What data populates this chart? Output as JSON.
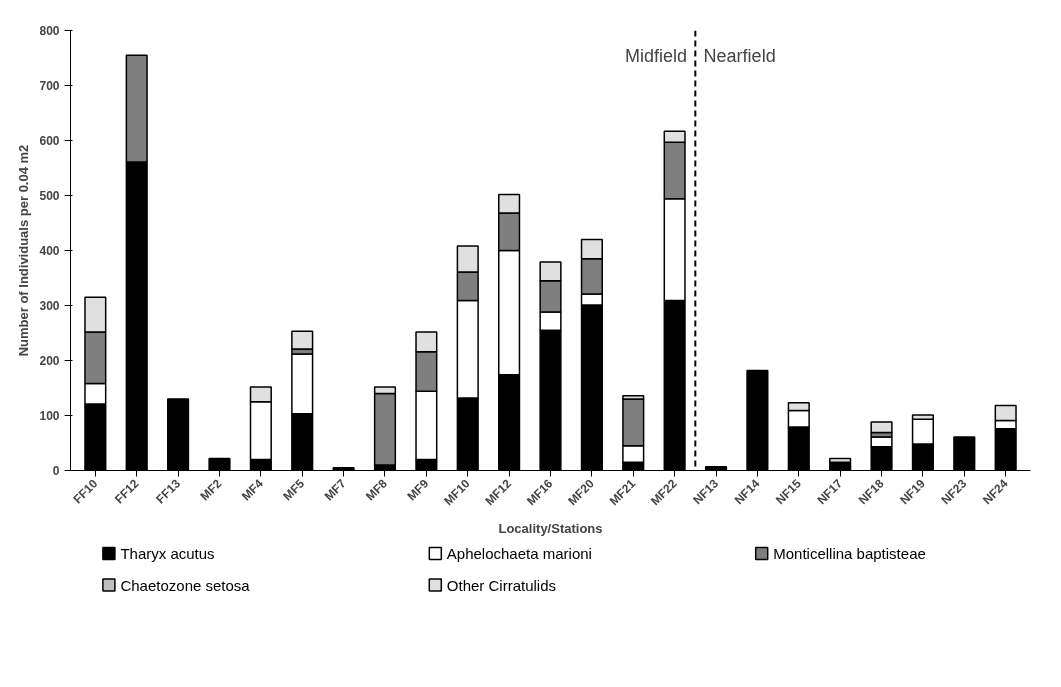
{
  "chart_data": {
    "type": "bar",
    "stacked": true,
    "xlabel": "Locality/Stations",
    "ylabel": "Number of Individuals per 0.04 m2",
    "categories": [
      "FF10",
      "FF12",
      "FF13",
      "MF2",
      "MF4",
      "MF5",
      "MF7",
      "MF8",
      "MF9",
      "MF10",
      "MF12",
      "MF16",
      "MF20",
      "MF21",
      "MF22",
      "NF13",
      "NF14",
      "NF15",
      "NF17",
      "NF18",
      "NF19",
      "NF23",
      "NF24"
    ],
    "series": [
      {
        "name": "Tharyx acutus",
        "color": "#000000",
        "values": [
          121,
          561,
          130,
          22,
          20,
          103,
          5,
          10,
          20,
          132,
          174,
          255,
          301,
          15,
          309,
          7,
          182,
          79,
          15,
          43,
          48,
          61,
          76
        ]
      },
      {
        "name": "Aphelochaeta marioni",
        "color": "#ffffff",
        "values": [
          37,
          0,
          0,
          0,
          105,
          109,
          0,
          0,
          124,
          177,
          226,
          33,
          20,
          30,
          185,
          0,
          0,
          30,
          0,
          18,
          45,
          0,
          15
        ]
      },
      {
        "name": "Monticellina baptisteae",
        "color": "#7f7f7f",
        "values": [
          94,
          194,
          0,
          0,
          0,
          9,
          0,
          130,
          72,
          52,
          68,
          57,
          64,
          85,
          103,
          0,
          0,
          0,
          0,
          8,
          0,
          0,
          0
        ]
      },
      {
        "name": "Chaetozone setosa",
        "color": "#bfbfbf",
        "values": [
          0,
          0,
          0,
          0,
          0,
          0,
          0,
          0,
          0,
          0,
          0,
          0,
          0,
          0,
          0,
          0,
          0,
          0,
          0,
          0,
          0,
          0,
          0
        ]
      },
      {
        "name": "Other Cirratulids",
        "color": "#e0e0e0",
        "values": [
          63,
          0,
          0,
          0,
          27,
          32,
          0,
          12,
          36,
          47,
          34,
          34,
          35,
          6,
          20,
          0,
          0,
          14,
          7,
          19,
          8,
          0,
          27
        ]
      }
    ],
    "ylim": [
      0,
      800
    ],
    "yticks": [
      0,
      100,
      200,
      300,
      400,
      500,
      600,
      700,
      800
    ],
    "grid": false,
    "legend": "bottom",
    "annotations": [
      "Midfield",
      "Nearfield"
    ]
  }
}
